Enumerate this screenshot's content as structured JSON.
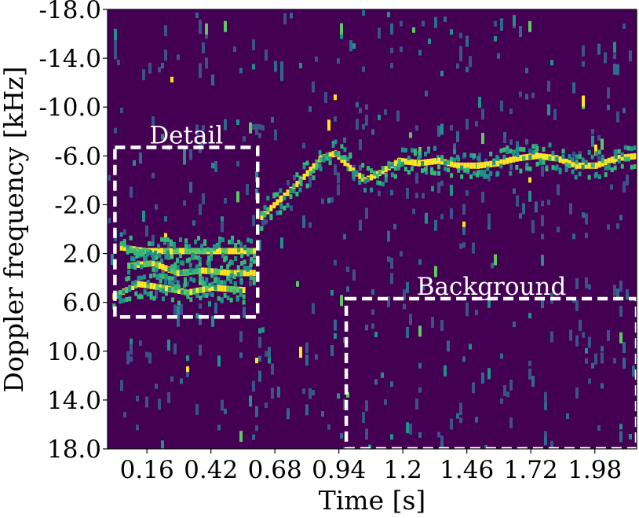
{
  "chart_data": {
    "type": "heatmap",
    "title": "",
    "xlabel": "Time [s]",
    "ylabel": "Doppler frequency [kHz]",
    "x_ticks": [
      "0.16",
      "0.42",
      "0.68",
      "0.94",
      "1.2",
      "1.46",
      "1.72",
      "1.98"
    ],
    "x_tick_values": [
      0.16,
      0.42,
      0.68,
      0.94,
      1.2,
      1.46,
      1.72,
      1.98
    ],
    "y_ticks": [
      "-18.0",
      "-14.0",
      "-10.0",
      "-6.0",
      "-2.0",
      "2.0",
      "6.0",
      "10.0",
      "14.0",
      "18.0"
    ],
    "y_tick_values": [
      -18,
      -14,
      -10,
      -6,
      -2,
      2,
      6,
      10,
      14,
      18
    ],
    "xlim": [
      0.0,
      2.15
    ],
    "ylim": [
      -18.0,
      18.0
    ],
    "colormap": "viridis",
    "background_color": "#440154",
    "signal": {
      "main_trace": [
        {
          "t": 0.62,
          "f": -1.0
        },
        {
          "t": 0.7,
          "f": -2.5
        },
        {
          "t": 0.78,
          "f": -4.0
        },
        {
          "t": 0.86,
          "f": -5.8
        },
        {
          "t": 0.92,
          "f": -6.2
        },
        {
          "t": 0.98,
          "f": -5.0
        },
        {
          "t": 1.04,
          "f": -4.0
        },
        {
          "t": 1.1,
          "f": -4.6
        },
        {
          "t": 1.18,
          "f": -5.6
        },
        {
          "t": 1.26,
          "f": -5.4
        },
        {
          "t": 1.34,
          "f": -5.6
        },
        {
          "t": 1.42,
          "f": -5.2
        },
        {
          "t": 1.5,
          "f": -5.2
        },
        {
          "t": 1.58,
          "f": -5.4
        },
        {
          "t": 1.66,
          "f": -5.8
        },
        {
          "t": 1.74,
          "f": -6.0
        },
        {
          "t": 1.82,
          "f": -5.8
        },
        {
          "t": 1.9,
          "f": -5.2
        },
        {
          "t": 1.98,
          "f": -5.2
        },
        {
          "t": 2.06,
          "f": -5.8
        },
        {
          "t": 2.15,
          "f": -6.0
        }
      ],
      "detail_traces": [
        [
          {
            "t": 0.05,
            "f": 1.5
          },
          {
            "t": 0.15,
            "f": 1.8
          },
          {
            "t": 0.3,
            "f": 1.8
          },
          {
            "t": 0.45,
            "f": 1.8
          },
          {
            "t": 0.6,
            "f": 1.8
          }
        ],
        [
          {
            "t": 0.08,
            "f": 3.0
          },
          {
            "t": 0.18,
            "f": 2.8
          },
          {
            "t": 0.28,
            "f": 3.6
          },
          {
            "t": 0.38,
            "f": 3.4
          },
          {
            "t": 0.5,
            "f": 3.6
          },
          {
            "t": 0.6,
            "f": 3.6
          }
        ],
        [
          {
            "t": 0.02,
            "f": 5.5
          },
          {
            "t": 0.12,
            "f": 4.5
          },
          {
            "t": 0.22,
            "f": 4.8
          },
          {
            "t": 0.32,
            "f": 5.2
          },
          {
            "t": 0.42,
            "f": 4.8
          },
          {
            "t": 0.55,
            "f": 5.0
          }
        ]
      ]
    },
    "annotations": [
      {
        "label": "Detail",
        "t_range": [
          0.03,
          0.61
        ],
        "f_range": [
          -6.7,
          7.2
        ]
      },
      {
        "label": "Background",
        "t_range": [
          0.97,
          2.15
        ],
        "f_range": [
          5.7,
          18.0
        ]
      }
    ]
  }
}
